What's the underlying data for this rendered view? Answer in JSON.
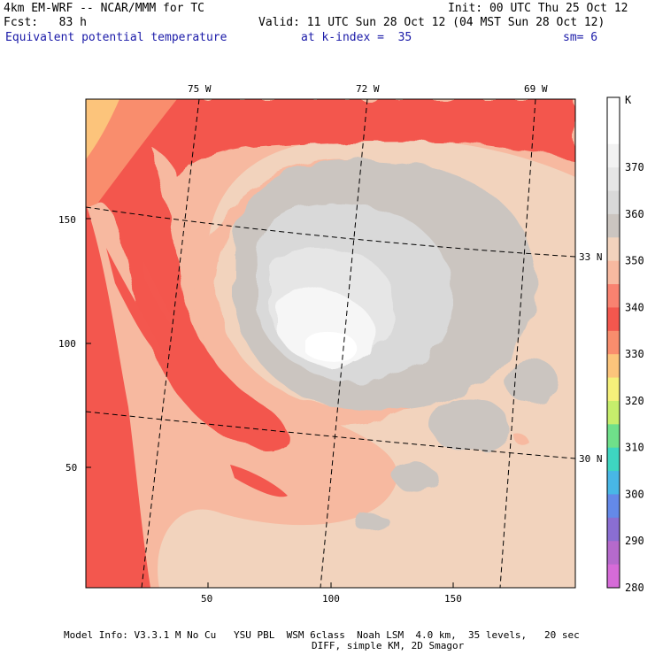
{
  "header": {
    "model": "4km EM-WRF -- NCAR/MMM for TC",
    "init": "Init: 00 UTC Thu 25 Oct 12",
    "fcst": "Fcst:   83 h",
    "valid": "Valid: 11 UTC Sun 28 Oct 12 (04 MST Sun 28 Oct 12)",
    "field": "Equivalent potential temperature",
    "level": "at k-index =  35",
    "smooth": "sm= 6"
  },
  "map": {
    "lon_labels": [
      "75 W",
      "72 W",
      "69 W"
    ],
    "lat_labels": [
      "33 N",
      "30 N"
    ],
    "x_ticks": [
      "50",
      "100",
      "150"
    ],
    "y_ticks": [
      "150",
      "100",
      "50"
    ]
  },
  "colorbar": {
    "unit": "K",
    "levels": [
      "370",
      "360",
      "350",
      "340",
      "330",
      "320",
      "310",
      "300",
      "290",
      "280"
    ],
    "colors": [
      "#ffffff",
      "#ffffff",
      "#f2f2f2",
      "#e6e6e6",
      "#d9d9d9",
      "#cbc5c0",
      "#f2d3bd",
      "#f7b9a0",
      "#f98270",
      "#f3574e",
      "#f98d6d",
      "#fcc47b",
      "#f5f07a",
      "#c6ee6c",
      "#6fe08a",
      "#3ed6c1",
      "#48b7e6",
      "#6489e8",
      "#8a6ed2",
      "#b56acc",
      "#d66bd8"
    ]
  },
  "footer": {
    "line1": "Model Info: V3.3.1 M No Cu   YSU PBL  WSM 6class  Noah LSM  4.0 km,  35 levels,   20 sec",
    "line2": "DIFF, simple KM, 2D Smagor"
  }
}
